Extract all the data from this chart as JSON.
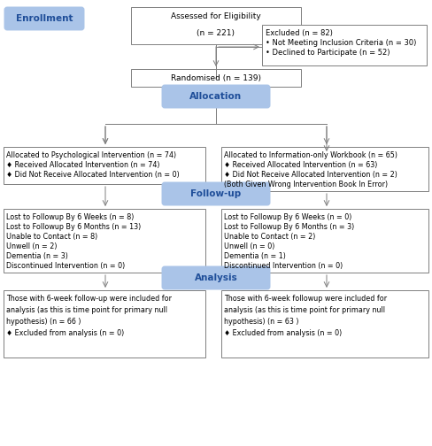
{
  "bg_color": "#ffffff",
  "blue_fill": "#aac4e8",
  "blue_text": "#1f4e99",
  "arrow_color": "#7f7f7f",
  "box_edge": "#7f7f7f",
  "enrollment_label": "Enrollment",
  "allocation_label": "Allocation",
  "followup_label": "Follow-up",
  "analysis_label": "Analysis",
  "assess_line1": "Assessed for Eligibility",
  "assess_line2": "(n = 221)",
  "excluded_line1": "Excluded (n = 82)",
  "excluded_bullet1": "• Not Meeting Inclusion Criteria (n = 30)",
  "excluded_bullet2": "• Declined to Participate (n = 52)",
  "randomised_text": "Randomised (n = 139)",
  "alloc_left_line1": "Allocated to Psychological Intervention (n = 74)",
  "alloc_left_line2": "♦ Received Allocated Intervention (n = 74)",
  "alloc_left_line3": "♦ Did Not Receive Allocated Intervention (n = 0)",
  "alloc_right_line1": "Allocated to Information-only Workbook (n = 65)",
  "alloc_right_line2": "♦ Received Allocated Intervention (n = 63)",
  "alloc_right_line3": "♦ Did Not Receive Allocated Intervention (n = 2)",
  "alloc_right_line4": "(Both Given Wrong Intervention Book In Error)",
  "fu_left_line1": "Lost to Followup By 6 Weeks (n = 8)",
  "fu_left_line2": "Lost to Followup By 6 Months (n = 13)",
  "fu_left_line3": "Unable to Contact (n = 8)",
  "fu_left_line4": "Unwell (n = 2)",
  "fu_left_line5": "Dementia (n = 3)",
  "fu_left_line6": "Discontinued Intervention (n = 0)",
  "fu_right_line1": "Lost to Followup By 6 Weeks (n = 0)",
  "fu_right_line2": "Lost to Followup By 6 Months (n = 3)",
  "fu_right_line3": "Unable to Contact (n = 2)",
  "fu_right_line4": "Unwell (n = 0)",
  "fu_right_line5": "Dementia (n = 1)",
  "fu_right_line6": "Discontinued Intervention (n = 0)",
  "an_left_line1": "Those with 6-week follow-up were included for",
  "an_left_line2": "analysis (as this is time point for primary null",
  "an_left_line3": "hypothesis) (n = 66 )",
  "an_left_line4": "♦ Excluded from analysis (n = 0)",
  "an_right_line1": "Those with 6-week followup were included for",
  "an_right_line2": "analysis (as this is time point for primary null",
  "an_right_line3": "hypothesis) (n = 63 )",
  "an_right_line4": "♦ Excluded from analysis (n = 0)"
}
